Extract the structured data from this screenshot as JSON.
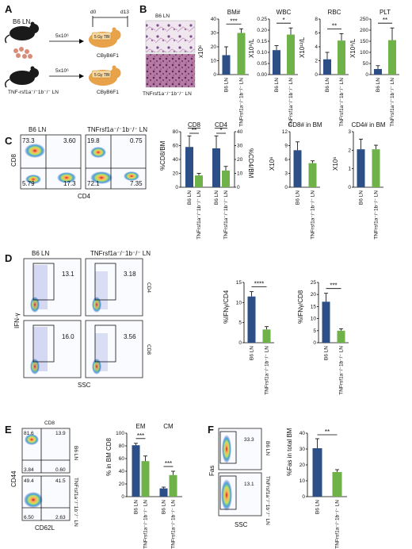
{
  "panels": {
    "A": {
      "label": "A",
      "donor_b6": "B6 LN",
      "donor_tnf": "TNF-rsf1a⁻/⁻1b⁻/⁻ LN",
      "dose_top": "5x10⁶",
      "dose_bottom": "5x10⁶",
      "day_start": "d0",
      "day_end": "d13",
      "irradiation": "5 Gy TBI",
      "recipient": "CByB6F1"
    },
    "B": {
      "label": "B",
      "histo_top": "B6 LN",
      "histo_bottom": "TNFrsf1a⁻/⁻1b⁻/⁻ LN"
    },
    "C": {
      "label": "C",
      "plot_left_title": "B6 LN",
      "plot_right_title": "TNFrsf1a⁻/⁻1b⁻/⁻ LN",
      "y_axis": "CD8",
      "x_axis": "CD4",
      "quad_left": [
        "73.3",
        "3.60",
        "5.79",
        "17.3"
      ],
      "quad_right": [
        "19.8",
        "0.75",
        "72.1",
        "7.35"
      ]
    },
    "D": {
      "label": "D",
      "plot_left_title": "B6 LN",
      "plot_right_title": "TNFrsf1a⁻/⁻1b⁻/⁻ LN",
      "y_axis": "IFN-γ",
      "x_axis": "SSC",
      "row_cd4": "CD4",
      "row_cd8": "CD8",
      "values": [
        "13.1",
        "3.18",
        "16.0",
        "3.56"
      ]
    },
    "E": {
      "label": "E",
      "header": "CD8",
      "y_axis": "CD44",
      "x_axis": "CD62L",
      "row_top": "B6 LN",
      "row_bottom": "TNFrsf1a⁻/⁻1b⁻/⁻ LN",
      "quad_top": [
        "81.6",
        "13.9",
        "3.84",
        "0.60"
      ],
      "quad_bottom": [
        "49.4",
        "41.5",
        "6.50",
        "2.63"
      ]
    },
    "F": {
      "label": "F",
      "y_axis": "Fas",
      "x_axis": "SSC",
      "row_top": "B6 LN",
      "row_bottom": "TNFrsf1a⁻/⁻1b⁻/⁻ LN",
      "values": [
        "33.3",
        "13.1"
      ]
    }
  },
  "colors": {
    "b6": "#2b4f86",
    "tnf": "#6fb24a"
  },
  "chart_data": [
    {
      "id": "bm",
      "type": "bar",
      "title": "BM#",
      "ylabel": "x10⁶",
      "ylim": [
        0,
        40
      ],
      "yticks": [
        "0",
        "10",
        "20",
        "30",
        "40"
      ],
      "categories": [
        "B6 LN",
        "TNFrsf1a⁻/⁻1b⁻/⁻ LN"
      ],
      "values": [
        14,
        30
      ],
      "errors": [
        6,
        3
      ],
      "sig": "***"
    },
    {
      "id": "wbc",
      "type": "bar",
      "title": "WBC",
      "ylabel": "X10⁹/L",
      "ylim": [
        0,
        0.25
      ],
      "yticks": [
        "0.00",
        "0.05",
        "0.10",
        "0.15",
        "0.20",
        "0.25"
      ],
      "categories": [
        "B6 LN",
        "TNFrsf1a⁻/⁻1b⁻/⁻ LN"
      ],
      "values": [
        0.11,
        0.18
      ],
      "errors": [
        0.02,
        0.03
      ],
      "sig": "*"
    },
    {
      "id": "rbc",
      "type": "bar",
      "title": "RBC",
      "ylabel": "X10¹²/L",
      "ylim": [
        0,
        8
      ],
      "yticks": [
        "0",
        "2",
        "4",
        "6",
        "8"
      ],
      "categories": [
        "B6 LN",
        "TNFrsf1a⁻/⁻1b⁻/⁻ LN"
      ],
      "values": [
        2.2,
        4.9
      ],
      "errors": [
        1.0,
        1.0
      ],
      "sig": "**"
    },
    {
      "id": "plt",
      "type": "bar",
      "title": "PLT",
      "ylabel": "X10⁹/L",
      "ylim": [
        0,
        250
      ],
      "yticks": [
        "0",
        "50",
        "100",
        "150",
        "200",
        "250"
      ],
      "categories": [
        "B6 LN",
        "TNFrsf1a⁻/⁻1b⁻/⁻ LN"
      ],
      "values": [
        25,
        155
      ],
      "errors": [
        15,
        55
      ],
      "sig": "**"
    },
    {
      "id": "cd8cd4",
      "type": "bar",
      "ylabel": "%CD8/BM",
      "ylabel_right": "%CD4/BM",
      "ylim": [
        0,
        80
      ],
      "ylim_right": [
        0,
        40
      ],
      "yticks": [
        "0",
        "20",
        "40",
        "60",
        "80"
      ],
      "yticks_right": [
        "0",
        "10",
        "20",
        "30",
        "40"
      ],
      "groups": [
        "CD8",
        "CD4"
      ],
      "categories": [
        "B6 LN",
        "TNFrsf1a⁻/⁻1b⁻/⁻ LN",
        "B6 LN",
        "TNFrsf1a⁻/⁻1b⁻/⁻ LN"
      ],
      "values": [
        58,
        17,
        28,
        12
      ],
      "errors": [
        16,
        3,
        9,
        3
      ],
      "sig": [
        "**",
        "*"
      ]
    },
    {
      "id": "cd8bm",
      "type": "bar",
      "title": "CD8# in BM",
      "ylabel": "X10⁶",
      "ylim": [
        0,
        12
      ],
      "yticks": [
        "0",
        "3",
        "6",
        "9",
        "12"
      ],
      "categories": [
        "B6 LN",
        "TNFrsf1a⁻/⁻1b⁻/⁻ LN"
      ],
      "values": [
        8.0,
        5.2
      ],
      "errors": [
        1.8,
        0.5
      ],
      "sig": ""
    },
    {
      "id": "cd4bm",
      "type": "bar",
      "title": "CD4# in BM",
      "ylabel": "X10⁶",
      "ylim": [
        0,
        3
      ],
      "yticks": [
        "0",
        "1",
        "2",
        "3"
      ],
      "categories": [
        "B6 LN",
        "TNFrsf1a⁻/⁻1b⁻/⁻ LN"
      ],
      "values": [
        2.05,
        2.05
      ],
      "errors": [
        0.55,
        0.22
      ],
      "sig": ""
    },
    {
      "id": "ifncd4",
      "type": "bar",
      "ylabel": "%IFNγ/CD4",
      "ylim": [
        0,
        15
      ],
      "yticks": [
        "0",
        "5",
        "10",
        "15"
      ],
      "categories": [
        "B6 LN",
        "TNFrsf1a⁻/⁻1b⁻/⁻ LN"
      ],
      "values": [
        11.5,
        3.3
      ],
      "errors": [
        1.2,
        0.7
      ],
      "sig": "****"
    },
    {
      "id": "ifncd8",
      "type": "bar",
      "ylabel": "%IFNγ/CD8",
      "ylim": [
        0,
        25
      ],
      "yticks": [
        "0",
        "5",
        "10",
        "15",
        "20",
        "25"
      ],
      "categories": [
        "B6 LN",
        "TNFrsf1a⁻/⁻1b⁻/⁻ LN"
      ],
      "values": [
        17,
        5
      ],
      "errors": [
        3.5,
        0.8
      ],
      "sig": "***"
    },
    {
      "id": "emcm",
      "type": "bar",
      "ylabel": "% in BM CD8",
      "ylim": [
        0,
        100
      ],
      "yticks": [
        "0",
        "20",
        "40",
        "60",
        "80",
        "100"
      ],
      "groups": [
        "EM",
        "CM"
      ],
      "categories": [
        "B6 LN",
        "TNFrsf1a⁻/⁻1b⁻/⁻ LN",
        "B6 LN",
        "TNFrsf1a⁻/⁻1b⁻/⁻ LN"
      ],
      "values": [
        81,
        56,
        13,
        34
      ],
      "errors": [
        3,
        8,
        2,
        6
      ],
      "sig": [
        "***",
        "***"
      ]
    },
    {
      "id": "fas",
      "type": "bar",
      "ylabel": "%Fas in total BM",
      "ylim": [
        0,
        40
      ],
      "yticks": [
        "0",
        "10",
        "20",
        "30",
        "40"
      ],
      "categories": [
        "B6 LN",
        "TNFrsf1a⁻/⁻1b⁻/⁻ LN"
      ],
      "values": [
        30.5,
        15.5
      ],
      "errors": [
        6,
        1.5
      ],
      "sig": "**"
    }
  ]
}
